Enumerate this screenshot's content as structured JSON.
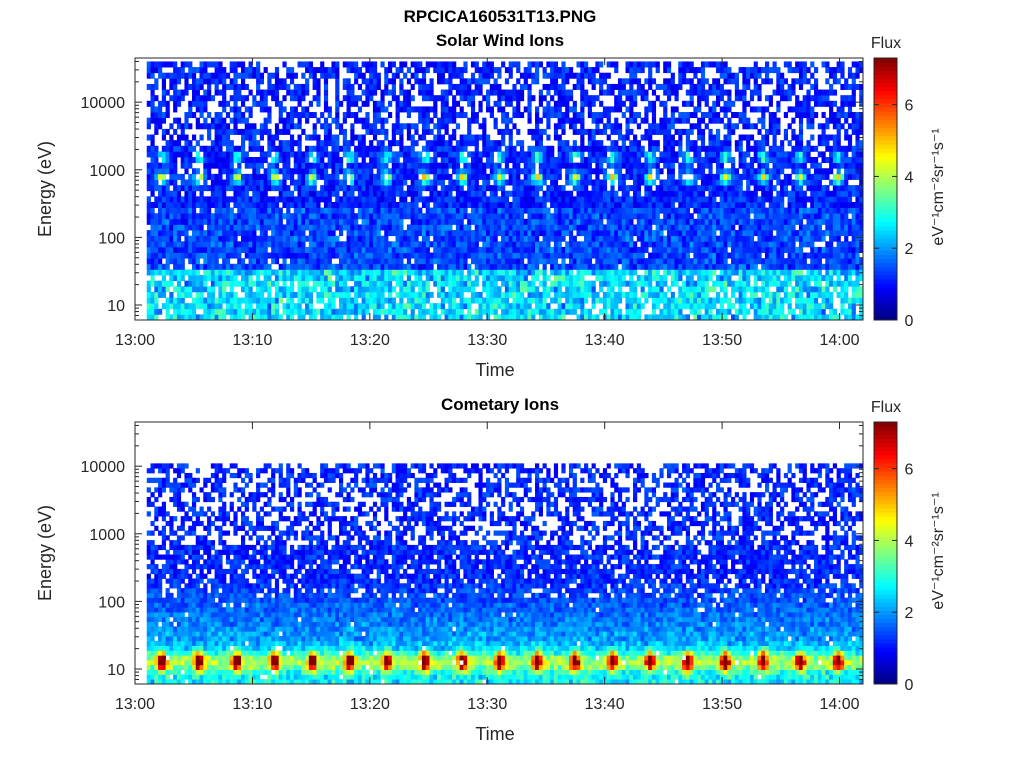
{
  "figure_title": "RPCICA160531T13.PNG",
  "chart_data": [
    {
      "type": "heatmap",
      "title": "Solar Wind Ions",
      "xlabel": "Time",
      "ylabel": "Energy (eV)",
      "x_ticks": [
        "13:00",
        "13:10",
        "13:20",
        "13:30",
        "13:40",
        "13:50",
        "14:00"
      ],
      "x_range": [
        "13:00",
        "14:02"
      ],
      "y_scale": "log",
      "y_ticks": [
        10,
        100,
        1000,
        10000
      ],
      "y_range": [
        6,
        45000
      ],
      "data_range": {
        "time": [
          "13:01",
          "14:02"
        ],
        "energy": [
          6,
          40000
        ]
      },
      "colorbar": {
        "label": "Flux",
        "units": "eV⁻¹cm⁻²sr⁻¹s⁻¹",
        "ticks": [
          0,
          2,
          4,
          6
        ],
        "range": [
          0,
          7.3
        ],
        "colormap": "jet"
      },
      "features": {
        "sweep_period_minutes": 3.2,
        "dominant_band": {
          "energy_eV": 700,
          "flux_peak": 4.2
        },
        "secondary_band": {
          "energy_eV": 1400,
          "flux_peak": 3.3
        },
        "low_energy_flux_below_30eV": 2.2,
        "background_flux": 0.7
      }
    },
    {
      "type": "heatmap",
      "title": "Cometary Ions",
      "xlabel": "Time",
      "ylabel": "Energy (eV)",
      "x_ticks": [
        "13:00",
        "13:10",
        "13:20",
        "13:30",
        "13:40",
        "13:50",
        "14:00"
      ],
      "x_range": [
        "13:00",
        "14:02"
      ],
      "y_scale": "log",
      "y_ticks": [
        10,
        100,
        1000,
        10000
      ],
      "y_range": [
        6,
        45000
      ],
      "data_range": {
        "time": [
          "13:01",
          "14:02"
        ],
        "energy": [
          6,
          11000
        ]
      },
      "colorbar": {
        "label": "Flux",
        "units": "eV⁻¹cm⁻²sr⁻¹s⁻¹",
        "ticks": [
          0,
          2,
          4,
          6
        ],
        "range": [
          0,
          7.3
        ],
        "colormap": "jet"
      },
      "features": {
        "sweep_period_minutes": 3.2,
        "dominant_band": {
          "energy_eV": 12,
          "flux_peak": 5.8
        },
        "background_flux": 0.8
      }
    }
  ]
}
